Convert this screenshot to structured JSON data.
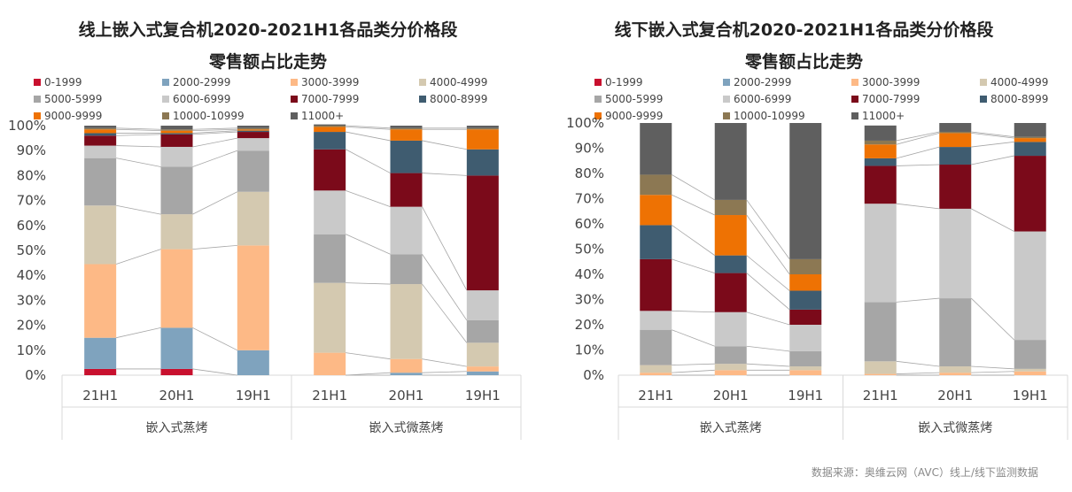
{
  "source": "数据来源：奥维云网（AVC）线上/线下监测数据",
  "chart_data": [
    {
      "type": "bar",
      "stacked": true,
      "title_line1": "线上嵌入式复合机2020-2021H1各品类分价格段",
      "title_line2": "零售额占比走势",
      "ylim": [
        0,
        100
      ],
      "yticks": [
        "0%",
        "10%",
        "20%",
        "30%",
        "40%",
        "50%",
        "60%",
        "70%",
        "80%",
        "90%",
        "100%"
      ],
      "groups": [
        {
          "name": "嵌入式蒸烤",
          "categories": [
            "21H1",
            "20H1",
            "19H1"
          ]
        },
        {
          "name": "嵌入式微蒸烤",
          "categories": [
            "21H1",
            "20H1",
            "19H1"
          ]
        }
      ],
      "series": [
        {
          "name": "0-1999",
          "color": "#C8102E",
          "values": [
            [
              2.5,
              2.5,
              0
            ],
            [
              0,
              0,
              0
            ]
          ]
        },
        {
          "name": "2000-2999",
          "color": "#7FA3BE",
          "values": [
            [
              12.5,
              16.5,
              10
            ],
            [
              0,
              1,
              1.5
            ]
          ]
        },
        {
          "name": "3000-3999",
          "color": "#FDB986",
          "values": [
            [
              29.5,
              31.5,
              42
            ],
            [
              9,
              5.5,
              2
            ]
          ]
        },
        {
          "name": "4000-4999",
          "color": "#D4C9B0",
          "values": [
            [
              23.5,
              14,
              21.5
            ],
            [
              28,
              30,
              9.5
            ]
          ]
        },
        {
          "name": "5000-5999",
          "color": "#A6A6A6",
          "values": [
            [
              19,
              19,
              16.5
            ],
            [
              19.5,
              12,
              9
            ]
          ]
        },
        {
          "name": "6000-6999",
          "color": "#C9C9C9",
          "values": [
            [
              5,
              8,
              5
            ],
            [
              17.5,
              19,
              12
            ]
          ]
        },
        {
          "name": "7000-7999",
          "color": "#7B0A1A",
          "values": [
            [
              4,
              5,
              2.5
            ],
            [
              16.5,
              13.5,
              46
            ]
          ]
        },
        {
          "name": "8000-8999",
          "color": "#3F5C70",
          "values": [
            [
              1,
              0.5,
              0.5
            ],
            [
              7,
              13,
              10.5
            ]
          ]
        },
        {
          "name": "9000-9999",
          "color": "#EE7203",
          "values": [
            [
              1.5,
              1,
              0.5
            ],
            [
              2,
              4.5,
              8
            ]
          ]
        },
        {
          "name": "10000-10999",
          "color": "#8C7853",
          "values": [
            [
              0.5,
              0.5,
              0.5
            ],
            [
              0.5,
              0.5,
              0.5
            ]
          ]
        },
        {
          "name": "11000+",
          "color": "#5F5F5F",
          "values": [
            [
              1,
              1.5,
              1
            ],
            [
              0.5,
              1,
              1
            ]
          ]
        }
      ]
    },
    {
      "type": "bar",
      "stacked": true,
      "title_line1": "线下嵌入式复合机2020-2021H1各品类分价格段",
      "title_line2": "零售额占比走势",
      "ylim": [
        0,
        100
      ],
      "yticks": [
        "0%",
        "10%",
        "20%",
        "30%",
        "40%",
        "50%",
        "60%",
        "70%",
        "80%",
        "90%",
        "100%"
      ],
      "groups": [
        {
          "name": "嵌入式蒸烤",
          "categories": [
            "21H1",
            "20H1",
            "19H1"
          ]
        },
        {
          "name": "嵌入式微蒸烤",
          "categories": [
            "21H1",
            "20H1",
            "19H1"
          ]
        }
      ],
      "series": [
        {
          "name": "0-1999",
          "color": "#C8102E",
          "values": [
            [
              0,
              0,
              0
            ],
            [
              0,
              0,
              0
            ]
          ]
        },
        {
          "name": "2000-2999",
          "color": "#7FA3BE",
          "values": [
            [
              0,
              0,
              0
            ],
            [
              0,
              0,
              0
            ]
          ]
        },
        {
          "name": "3000-3999",
          "color": "#FDB986",
          "values": [
            [
              1,
              2,
              2
            ],
            [
              0.5,
              1,
              1.5
            ]
          ]
        },
        {
          "name": "4000-4999",
          "color": "#D4C9B0",
          "values": [
            [
              3,
              2.5,
              1.5
            ],
            [
              5,
              2.5,
              1
            ]
          ]
        },
        {
          "name": "5000-5999",
          "color": "#A6A6A6",
          "values": [
            [
              14,
              7,
              6
            ],
            [
              23.5,
              27,
              11.5
            ]
          ]
        },
        {
          "name": "6000-6999",
          "color": "#C9C9C9",
          "values": [
            [
              7.5,
              13.5,
              10.5
            ],
            [
              39,
              35.5,
              43
            ]
          ]
        },
        {
          "name": "7000-7999",
          "color": "#7B0A1A",
          "values": [
            [
              20.5,
              15.5,
              6
            ],
            [
              15,
              17.5,
              30
            ]
          ]
        },
        {
          "name": "8000-8999",
          "color": "#3F5C70",
          "values": [
            [
              13.5,
              7,
              7.5
            ],
            [
              3,
              7,
              5.5
            ]
          ]
        },
        {
          "name": "9000-9999",
          "color": "#EE7203",
          "values": [
            [
              12,
              16,
              6.5
            ],
            [
              5.5,
              5.5,
              1.5
            ]
          ]
        },
        {
          "name": "10000-10999",
          "color": "#8C7853",
          "values": [
            [
              8,
              6,
              6
            ],
            [
              1.5,
              0.5,
              0.5
            ]
          ]
        },
        {
          "name": "11000+",
          "color": "#5F5F5F",
          "values": [
            [
              20.5,
              30.5,
              54
            ],
            [
              6,
              3.5,
              5.5
            ]
          ]
        }
      ]
    }
  ]
}
